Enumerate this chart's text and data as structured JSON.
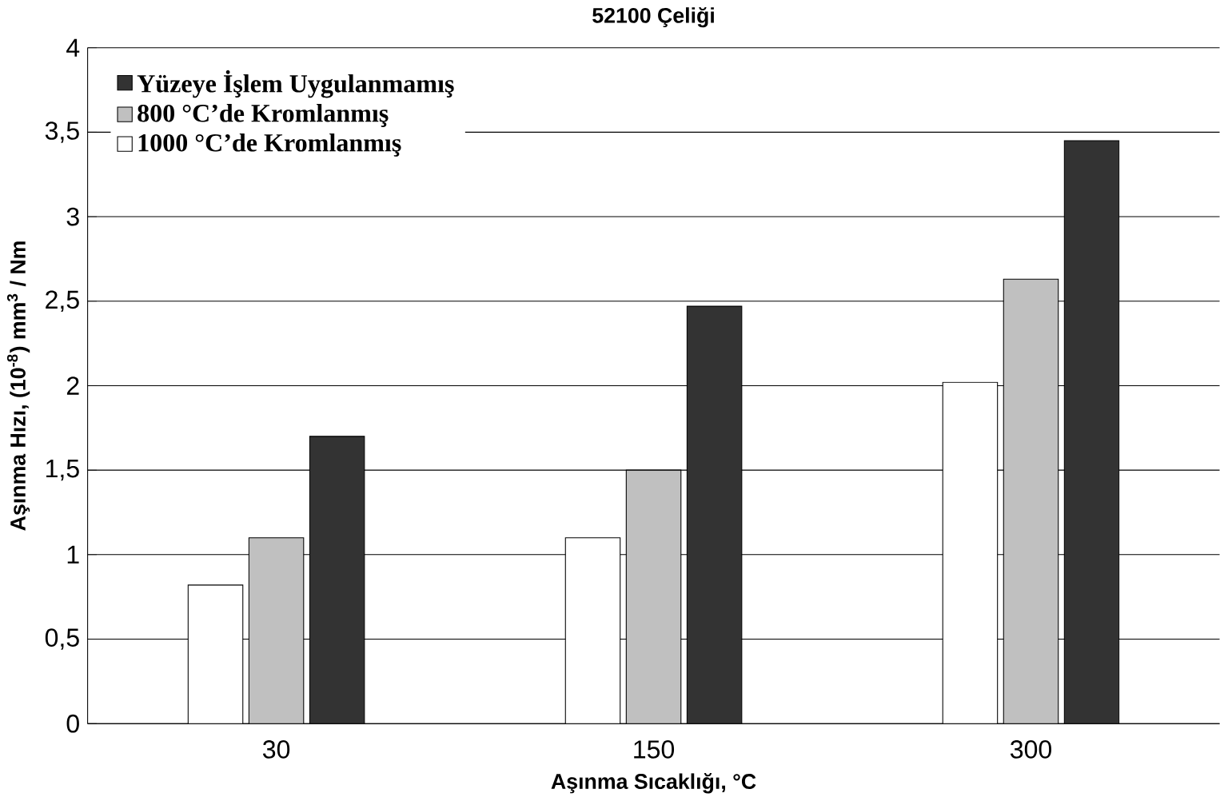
{
  "chart_data": {
    "type": "bar",
    "title": "52100 Çeliği",
    "xlabel": "Aşınma Sıcaklığı, °C",
    "ylabel": "Aşınma Hızı, (10$^{-8}$) mm$^{3}$ / Nm",
    "categories": [
      "30",
      "150",
      "300"
    ],
    "series": [
      {
        "name": "Yüzeye İşlem Uygulanmamış",
        "color": "#333333",
        "values": [
          1.7,
          2.47,
          3.45
        ]
      },
      {
        "name": "800 °C’de Kromlanmış",
        "color": "#c0c0c0",
        "values": [
          1.1,
          1.5,
          2.63
        ]
      },
      {
        "name": "1000 °C’de Kromlanmış",
        "color": "#ffffff",
        "values": [
          0.82,
          1.1,
          2.02
        ]
      }
    ],
    "ylim": [
      0,
      4
    ],
    "yticks": [
      0,
      {
        "value": 0.5,
        "label": "0,5"
      },
      1,
      {
        "value": 1.5,
        "label": "1,5"
      },
      2,
      {
        "value": 2.5,
        "label": "2,5"
      },
      3,
      {
        "value": 3.5,
        "label": "3,5"
      },
      4
    ],
    "grid": "y",
    "legend": "top left"
  }
}
